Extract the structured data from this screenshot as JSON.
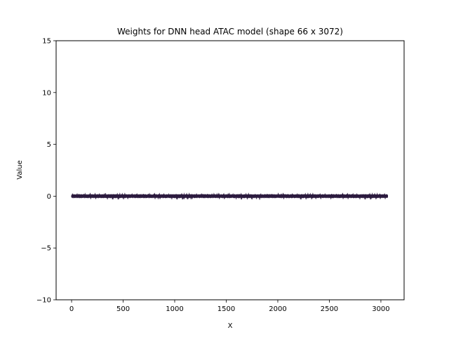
{
  "chart_data": {
    "type": "line",
    "title": "Weights for DNN head ATAC model (shape 66 x 3072)",
    "xlabel": "X",
    "ylabel": "Value",
    "xlim": [
      -150,
      3225
    ],
    "ylim": [
      -10,
      15
    ],
    "x_ticks": [
      0,
      500,
      1000,
      1500,
      2000,
      2500,
      3000
    ],
    "y_ticks": [
      -10,
      -5,
      0,
      5,
      10,
      15
    ],
    "grid": false,
    "legend": "none",
    "series_color": "#2d1b40",
    "x_range": [
      0,
      3071
    ],
    "series_count": 66,
    "value_mean": 0.0,
    "value_amplitude": 0.15,
    "value_max": 0.3,
    "value_min": -0.35
  }
}
